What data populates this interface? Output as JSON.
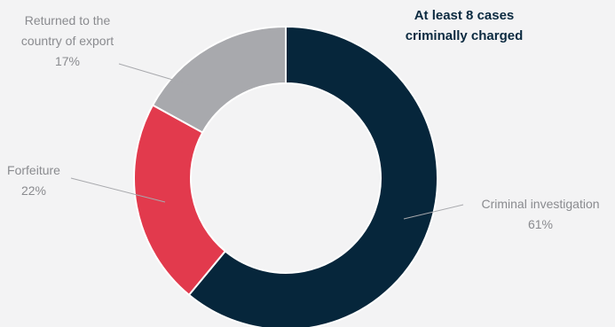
{
  "chart_data": {
    "type": "pie",
    "donut": true,
    "title": "",
    "annotation": [
      "At least 8 cases",
      "criminally charged"
    ],
    "slices": [
      {
        "name": "Criminal investigation",
        "value": 61,
        "value_label": "61%",
        "color": "#06263b"
      },
      {
        "name": "Forfeiture",
        "value": 22,
        "value_label": "22%",
        "color": "#e23a4d"
      },
      {
        "name": "Returned to the country of export",
        "value": 17,
        "value_label": "17%",
        "color": "#a8a9ad"
      }
    ],
    "legend": "none"
  }
}
